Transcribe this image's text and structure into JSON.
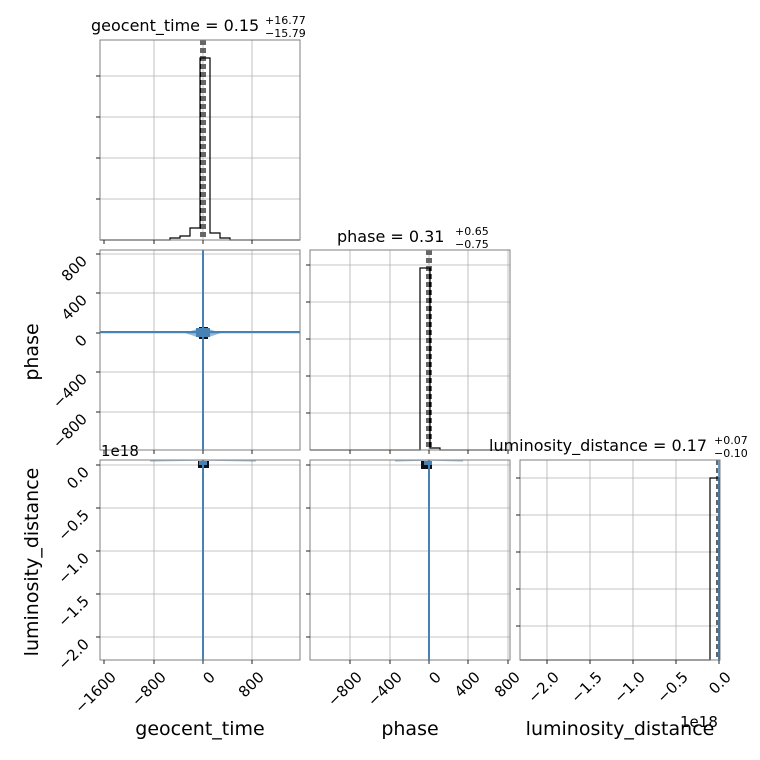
{
  "chart_data": {
    "type": "corner",
    "parameters": [
      {
        "name": "geocent_time",
        "xlabel": "geocent_time",
        "median": 0.15,
        "plus": 16.77,
        "minus": 15.79,
        "title_text": "geocent_time = 0.15",
        "sup": "+16.77",
        "sub": "−15.79",
        "range": [
          -1650,
          1000
        ],
        "ticks": [
          -1600,
          -800,
          0,
          800
        ],
        "tick_labels": [
          "−1600",
          "−800",
          "0",
          "800"
        ]
      },
      {
        "name": "phase",
        "xlabel": "phase",
        "ylabel": "phase",
        "median": 0.31,
        "plus": 0.65,
        "minus": 0.75,
        "title_text": "phase = 0.31",
        "sup": "+0.65",
        "sub": "−0.75",
        "range": [
          -1000,
          820
        ],
        "ticks": [
          -800,
          -400,
          0,
          400,
          800
        ],
        "tick_labels": [
          "−800",
          "−400",
          "0",
          "400",
          "800"
        ]
      },
      {
        "name": "luminosity_distance",
        "xlabel": "luminosity_distance",
        "ylabel": "luminosity_distance",
        "median": 0.17,
        "plus": 0.07,
        "minus": 0.1,
        "title_text": "luminosity_distance = 0.17",
        "sup": "+0.07",
        "sub": "−0.10",
        "range": [
          -2.3,
          0
        ],
        "ticks": [
          -2.0,
          -1.5,
          -1.0,
          -0.5,
          0.0
        ],
        "tick_labels": [
          "−2.0",
          "−1.5",
          "−1.0",
          "−0.5",
          "0.0"
        ],
        "offset_text": "1e18"
      }
    ],
    "histograms": {
      "geocent_time": [
        0,
        0.01,
        0.02,
        0.06,
        1.0,
        0.97,
        0.06,
        0.01,
        0
      ],
      "phase": [
        0.005,
        1.0,
        0.04,
        0.005
      ],
      "luminosity_distance": [
        0.002,
        1.0,
        0.0
      ]
    },
    "truth": {
      "geocent_time": 0,
      "phase": 0,
      "luminosity_distance": 0
    },
    "grid": true
  }
}
